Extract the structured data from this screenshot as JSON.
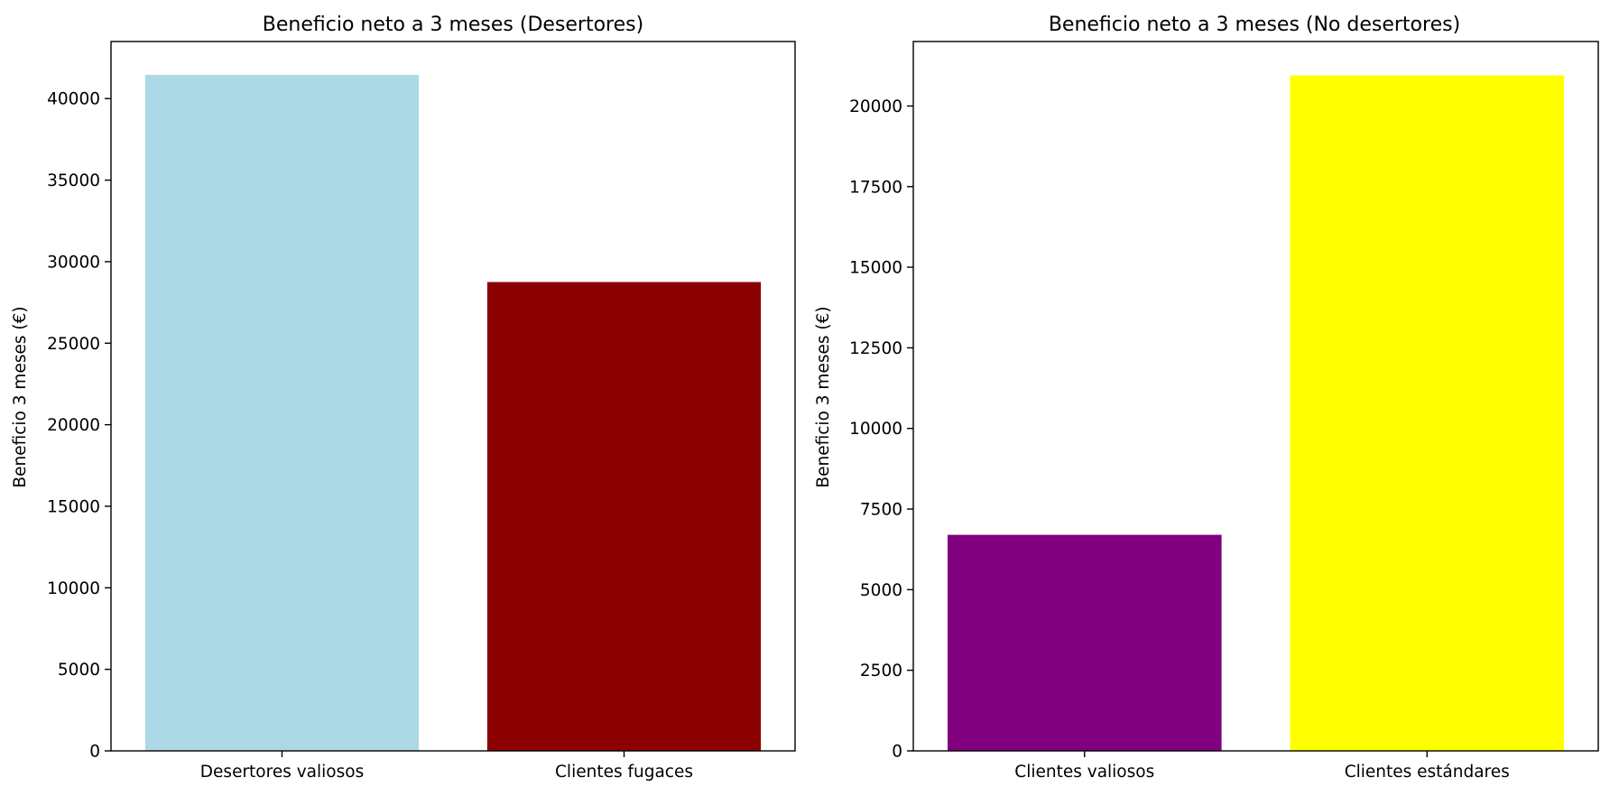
{
  "chart_data": [
    {
      "type": "bar",
      "title": "Beneficio neto a 3 meses (Desertores)",
      "xlabel": "",
      "ylabel": "Beneficio 3 meses (€)",
      "categories": [
        "Desertores valiosos",
        "Clientes fugaces"
      ],
      "values": [
        41450,
        28750
      ],
      "colors": [
        "#add8e6",
        "#8b0000"
      ],
      "ylim": [
        0,
        43500
      ],
      "yticks": [
        0,
        5000,
        10000,
        15000,
        20000,
        25000,
        30000,
        35000,
        40000
      ],
      "grid": false,
      "legend": "none"
    },
    {
      "type": "bar",
      "title": "Beneficio neto a 3 meses (No desertores)",
      "xlabel": "",
      "ylabel": "Beneficio 3 meses (€)",
      "categories": [
        "Clientes valiosos",
        "Clientes estándares"
      ],
      "values": [
        6700,
        20950
      ],
      "colors": [
        "#800080",
        "#ffff00"
      ],
      "ylim": [
        0,
        22000
      ],
      "yticks": [
        0,
        2500,
        5000,
        7500,
        10000,
        12500,
        15000,
        17500,
        20000
      ],
      "grid": false,
      "legend": "none"
    }
  ]
}
